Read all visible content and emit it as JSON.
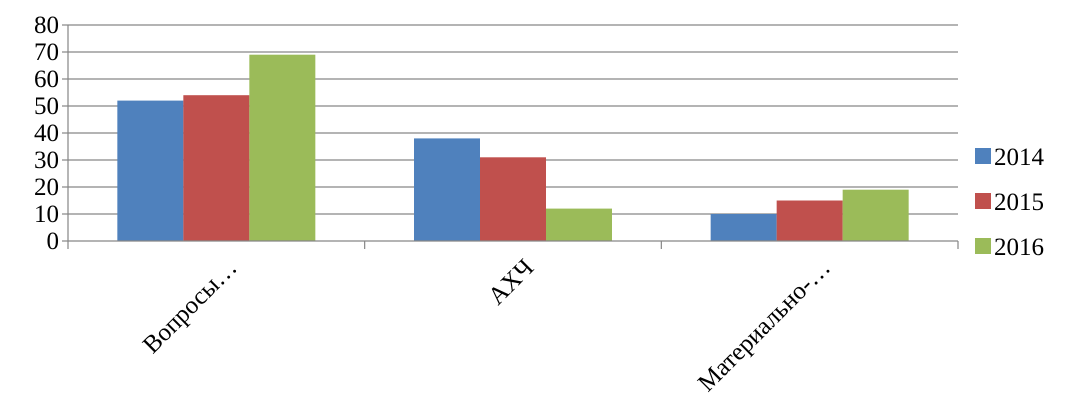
{
  "chart_data": {
    "type": "bar",
    "title": "",
    "xlabel": "",
    "ylabel": "",
    "ylim": [
      0,
      80
    ],
    "yticks": [
      0,
      10,
      20,
      30,
      40,
      50,
      60,
      70,
      80
    ],
    "grid": true,
    "legend_position": "right",
    "categories": [
      "Вопросы…",
      "АХЧ",
      "Материально-…"
    ],
    "series": [
      {
        "name": "2014",
        "color": "#4F81BD",
        "values": [
          52,
          38,
          10
        ]
      },
      {
        "name": "2015",
        "color": "#C0504D",
        "values": [
          54,
          31,
          15
        ]
      },
      {
        "name": "2016",
        "color": "#9BBB59",
        "values": [
          69,
          12,
          19
        ]
      }
    ]
  }
}
